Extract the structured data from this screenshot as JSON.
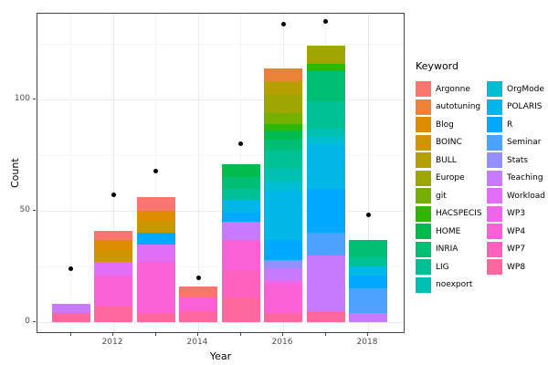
{
  "chart_data": {
    "type": "stacked_bar_with_points",
    "title": "",
    "xlabel": "Year",
    "ylabel": "Count",
    "legend_title": "Keyword",
    "legend_position": "right",
    "grid": "on",
    "years": [
      2011,
      2012,
      2013,
      2014,
      2015,
      2016,
      2017,
      2018
    ],
    "x_tick_years": [
      2011,
      2012,
      2013,
      2014,
      2015,
      2016,
      2017,
      2018
    ],
    "x_labeled_years": [
      2012,
      2014,
      2016,
      2018
    ],
    "y_ticks": [
      0,
      50,
      100
    ],
    "y_major_gridlines": [
      0,
      50,
      100
    ],
    "y_minor_gridlines": [
      25,
      75,
      125
    ],
    "ylim": [
      0,
      138
    ],
    "bar_totals": [
      8,
      41,
      56,
      16,
      71,
      114,
      124,
      37
    ],
    "series": [
      {
        "name": "Argonne",
        "color": "#F8766D",
        "values": [
          0,
          4,
          6,
          5,
          0,
          0,
          0,
          0
        ]
      },
      {
        "name": "autotuning",
        "color": "#EC8239",
        "values": [
          0,
          0,
          0,
          0,
          0,
          6,
          0,
          0
        ]
      },
      {
        "name": "Blog",
        "color": "#DE8C00",
        "values": [
          0,
          5,
          5,
          0,
          0,
          0,
          0,
          0
        ]
      },
      {
        "name": "BOINC",
        "color": "#CD9600",
        "values": [
          0,
          5,
          5,
          0,
          0,
          0,
          0,
          0
        ]
      },
      {
        "name": "BULL",
        "color": "#B79F00",
        "values": [
          0,
          0,
          0,
          0,
          0,
          6,
          0,
          0
        ]
      },
      {
        "name": "Europe",
        "color": "#9DA700",
        "values": [
          0,
          0,
          0,
          0,
          0,
          8,
          8,
          0
        ]
      },
      {
        "name": "git",
        "color": "#75AF00",
        "values": [
          0,
          0,
          0,
          0,
          0,
          5,
          0,
          0
        ]
      },
      {
        "name": "HACSPECIS",
        "color": "#2FB600",
        "values": [
          0,
          0,
          0,
          0,
          0,
          3,
          3,
          0
        ]
      },
      {
        "name": "HOME",
        "color": "#00BB4E",
        "values": [
          0,
          0,
          0,
          0,
          6,
          4,
          0,
          0
        ]
      },
      {
        "name": "INRIA",
        "color": "#00BF74",
        "values": [
          0,
          0,
          0,
          0,
          5,
          5,
          14,
          8
        ]
      },
      {
        "name": "LIG",
        "color": "#00C096",
        "values": [
          0,
          0,
          0,
          0,
          5,
          8,
          12,
          4
        ]
      },
      {
        "name": "noexport",
        "color": "#00C0B4",
        "values": [
          0,
          0,
          0,
          0,
          0,
          6,
          4,
          0
        ]
      },
      {
        "name": "OrgMode",
        "color": "#00BDD0",
        "values": [
          0,
          0,
          0,
          0,
          0,
          4,
          3,
          0
        ]
      },
      {
        "name": "POLARIS",
        "color": "#00B7E7",
        "values": [
          0,
          0,
          0,
          0,
          6,
          22,
          20,
          4
        ]
      },
      {
        "name": "R",
        "color": "#00A9FF",
        "values": [
          0,
          0,
          5,
          0,
          4,
          9,
          20,
          6
        ]
      },
      {
        "name": "Seminar",
        "color": "#4BA3FF",
        "values": [
          0,
          0,
          0,
          0,
          0,
          0,
          10,
          11
        ]
      },
      {
        "name": "Stats",
        "color": "#9590FF",
        "values": [
          0,
          0,
          0,
          0,
          0,
          4,
          0,
          0
        ]
      },
      {
        "name": "Teaching",
        "color": "#C77CFF",
        "values": [
          4,
          0,
          0,
          0,
          8,
          5,
          25,
          4
        ]
      },
      {
        "name": "Workload",
        "color": "#E36EF6",
        "values": [
          0,
          6,
          8,
          0,
          0,
          0,
          0,
          0
        ]
      },
      {
        "name": "WP3",
        "color": "#F066EA",
        "values": [
          0,
          0,
          0,
          0,
          0,
          2,
          0,
          0
        ]
      },
      {
        "name": "WP4",
        "color": "#FB61D7",
        "values": [
          0,
          14,
          23,
          6,
          14,
          13,
          0,
          0
        ]
      },
      {
        "name": "WP7",
        "color": "#FF61BE",
        "values": [
          0,
          0,
          0,
          0,
          12,
          0,
          0,
          0
        ]
      },
      {
        "name": "WP8",
        "color": "#FF689E",
        "values": [
          4,
          7,
          4,
          5,
          11,
          4,
          5,
          0
        ]
      }
    ],
    "points": {
      "name": "yearly-dot-series",
      "color": "#000000",
      "values": [
        24,
        57,
        68,
        20,
        80,
        134,
        135,
        48
      ]
    },
    "legend_split": 12
  },
  "colors": {
    "background": "#ffffff",
    "panel_border": "#454545",
    "grid_major": "#ebebeb",
    "grid_minor": "#f5f5f5",
    "tick_text": "#4d4d4d",
    "axis_title": "#000000"
  }
}
